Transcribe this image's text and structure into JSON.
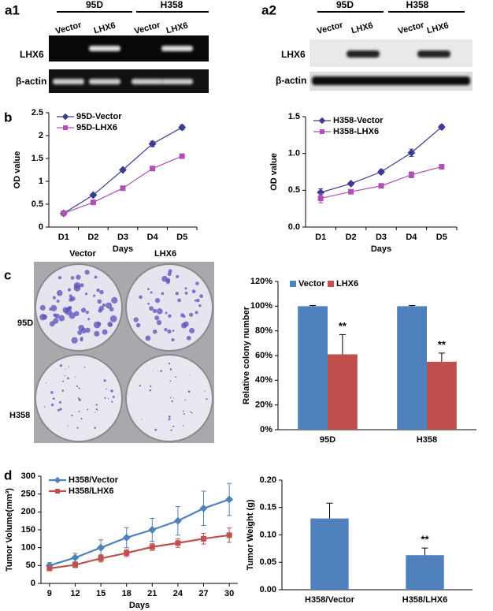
{
  "panel_labels": [
    "a1",
    "a2",
    "b",
    "c",
    "d"
  ],
  "gels": [
    {
      "groups": [
        "95D",
        "H358"
      ],
      "lanes": [
        "Vector",
        "LHX6",
        "Vector",
        "LHX6"
      ],
      "rows": [
        "LHX6",
        "β-actin"
      ]
    },
    {
      "groups": [
        "95D",
        "H358"
      ],
      "lanes": [
        "Vector",
        "LHX6",
        "Vector",
        "LHX6"
      ],
      "rows": [
        "LHX6",
        "β-actin"
      ]
    }
  ],
  "colony_photo": {
    "columns": [
      "Vector",
      "LHX6"
    ],
    "rows": [
      "95D",
      "H358"
    ]
  },
  "chart_data": [
    {
      "type": "line",
      "categories": [
        "D1",
        "D2",
        "D3",
        "D4",
        "D5"
      ],
      "xlabel": "Days",
      "ylabel": "OD value",
      "ylim": [
        0,
        2.5
      ],
      "yticks": [
        0,
        0.5,
        1,
        1.5,
        2,
        2.5
      ],
      "legend": "top-left",
      "series": [
        {
          "name": "95D-Vector",
          "color": "#3c3c90",
          "marker": "diamond",
          "values": [
            0.3,
            0.7,
            1.25,
            1.82,
            2.18
          ],
          "errors": [
            0.02,
            0.03,
            0.03,
            0.06,
            0.05
          ]
        },
        {
          "name": "95D-LHX6",
          "color": "#b04fb5",
          "marker": "square",
          "values": [
            0.3,
            0.54,
            0.85,
            1.28,
            1.55
          ],
          "errors": [
            0.02,
            0.03,
            0.03,
            0.05,
            0.04
          ]
        }
      ]
    },
    {
      "type": "line",
      "categories": [
        "D1",
        "D2",
        "D3",
        "D4",
        "D5"
      ],
      "xlabel": "Days",
      "ylabel": "OD value",
      "ylim": [
        0,
        1.5
      ],
      "yticks": [
        {
          "value": 0,
          "label": "0.0"
        },
        {
          "value": 0.5,
          "label": "0.5"
        },
        {
          "value": 1,
          "label": "1.0"
        },
        {
          "value": 1.5,
          "label": "1.5"
        }
      ],
      "legend": "top-left",
      "series": [
        {
          "name": "H358-Vector",
          "color": "#3c3c90",
          "marker": "diamond",
          "values": [
            0.47,
            0.59,
            0.75,
            1.01,
            1.36
          ],
          "errors": [
            0.05,
            0.02,
            0.03,
            0.05,
            0.03
          ]
        },
        {
          "name": "H358-LHX6",
          "color": "#b04fb5",
          "marker": "square",
          "values": [
            0.39,
            0.48,
            0.56,
            0.71,
            0.82
          ],
          "errors": [
            0.06,
            0.02,
            0.02,
            0.04,
            0.03
          ]
        }
      ]
    },
    {
      "type": "bar",
      "categories": [
        "95D",
        "H358"
      ],
      "ylabel": "Relative colony number",
      "ylim": [
        0,
        120
      ],
      "yticks": [
        {
          "value": 0,
          "label": "0%"
        },
        {
          "value": 20,
          "label": "20%"
        },
        {
          "value": 40,
          "label": "40%"
        },
        {
          "value": 60,
          "label": "60%"
        },
        {
          "value": 80,
          "label": "80%"
        },
        {
          "value": 100,
          "label": "100%"
        },
        {
          "value": 120,
          "label": "120%"
        }
      ],
      "legend": "top",
      "series": [
        {
          "name": "Vector",
          "color": "#4f81bd",
          "values": [
            100,
            100
          ],
          "errors": [
            0.5,
            0.5
          ]
        },
        {
          "name": "LHX6",
          "color": "#c0504d",
          "values": [
            61,
            55
          ],
          "errors": [
            16,
            7
          ],
          "annotations": [
            "**",
            "**"
          ]
        }
      ]
    },
    {
      "type": "line",
      "x": [
        9,
        12,
        15,
        18,
        21,
        24,
        27,
        30
      ],
      "xlim": [
        8,
        31
      ],
      "xticks": [
        9,
        12,
        15,
        18,
        21,
        24,
        27,
        30
      ],
      "xlabel": "Days",
      "ylabel": "Tumor Volume(mm³)",
      "ylim": [
        0,
        300
      ],
      "yticks": [
        0,
        50,
        100,
        150,
        200,
        250,
        300
      ],
      "legend": "top-left",
      "series": [
        {
          "name": "H358/Vector",
          "color": "#4f81bd",
          "marker": "diamond",
          "values": [
            50,
            72,
            100,
            128,
            150,
            175,
            210,
            235
          ],
          "errors": [
            8,
            12,
            22,
            28,
            32,
            40,
            48,
            45
          ]
        },
        {
          "name": "H358/LHX6",
          "color": "#c0504d",
          "marker": "square",
          "values": [
            42,
            52,
            70,
            85,
            102,
            113,
            125,
            135
          ],
          "errors": [
            6,
            8,
            10,
            10,
            10,
            12,
            15,
            20
          ]
        }
      ]
    },
    {
      "type": "bar",
      "categories": [
        "H358/Vector",
        "H358/LHX6"
      ],
      "ylabel": "Tumor Weight (g)",
      "ylim": [
        0,
        0.2
      ],
      "yticks": [
        {
          "value": 0,
          "label": "0.00"
        },
        {
          "value": 0.05,
          "label": "0.05"
        },
        {
          "value": 0.1,
          "label": "0.10"
        },
        {
          "value": 0.15,
          "label": "0.15"
        },
        {
          "value": 0.2,
          "label": "0.20"
        }
      ],
      "series": [
        {
          "color": "#4f81bd",
          "values": [
            0.13,
            0.063
          ],
          "errors": [
            0.028,
            0.013
          ],
          "annotations": [
            null,
            "**"
          ]
        }
      ]
    }
  ]
}
